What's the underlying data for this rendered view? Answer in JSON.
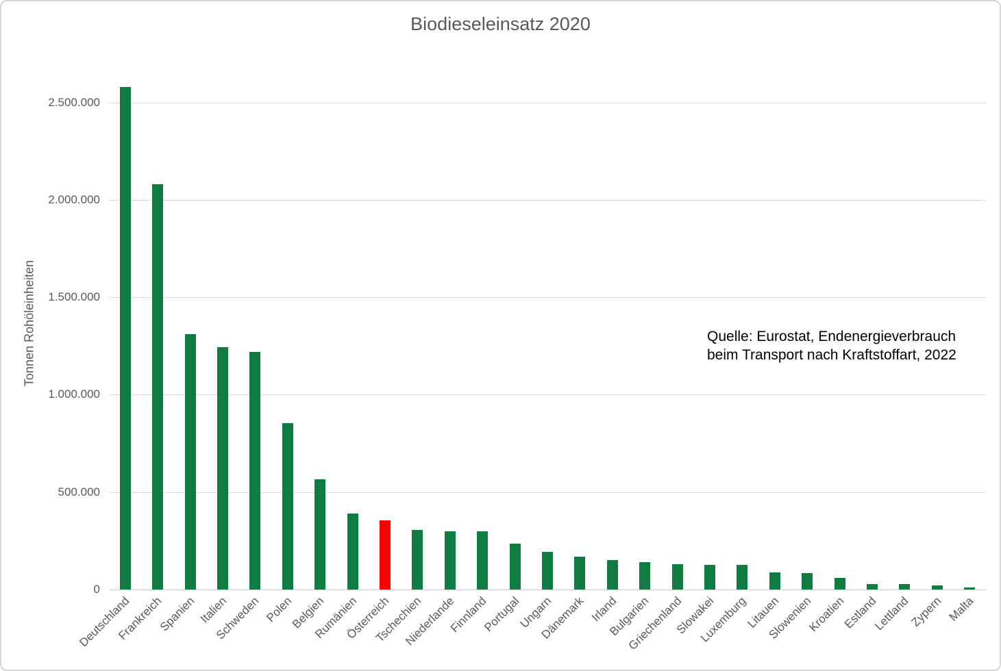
{
  "title": "Biodieseleinsatz 2020",
  "source": {
    "line1": "Quelle:  Eurostat, Endenergieverbrauch",
    "line2": "beim Transport nach Kraftstoffart, 2022"
  },
  "y_axis": {
    "title": "Tonnen Rohöleinheiten",
    "ticks": [
      {
        "label": "0",
        "value": 0
      },
      {
        "label": "500.000",
        "value": 500000
      },
      {
        "label": "1.000.000",
        "value": 1000000
      },
      {
        "label": "1.500.000",
        "value": 1500000
      },
      {
        "label": "2.000.000",
        "value": 2000000
      },
      {
        "label": "2.500.000",
        "value": 2500000
      }
    ]
  },
  "colors": {
    "bar_green": "#107C41",
    "bar_red": "#FE0000",
    "grid": "#D9D9D9",
    "axis_text": "#595959",
    "source_text": "#000000"
  },
  "chart_data": {
    "type": "bar",
    "title": "Biodieseleinsatz 2020",
    "xlabel": "",
    "ylabel": "Tonnen Rohöleinheiten",
    "ylim": [
      0,
      2600000
    ],
    "grid": true,
    "legend": "none",
    "categories": [
      "Deutschland",
      "Frankreich",
      "Spanien",
      "Italien",
      "Schweden",
      "Polen",
      "Belgien",
      "Rumänien",
      "Österreich",
      "Tschechien",
      "Niederlande",
      "Finnland",
      "Portugal",
      "Ungarn",
      "Dänemark",
      "Irland",
      "Bulgarien",
      "Griechenland",
      "Slowakei",
      "Luxemburg",
      "Litauen",
      "Slowenien",
      "Kroatien",
      "Estland",
      "Lettland",
      "Zypern",
      "Malta"
    ],
    "values": [
      2580000,
      2080000,
      1310000,
      1245000,
      1220000,
      855000,
      565000,
      390000,
      355000,
      305000,
      300000,
      300000,
      235000,
      195000,
      170000,
      150000,
      140000,
      130000,
      125000,
      125000,
      87000,
      83000,
      59000,
      28000,
      29000,
      22000,
      10000
    ],
    "highlight_category": "Österreich",
    "highlight_color": "#FE0000",
    "bar_color": "#107C41",
    "annotation": "Quelle:  Eurostat, Endenergieverbrauch beim Transport nach Kraftstoffart, 2022"
  }
}
